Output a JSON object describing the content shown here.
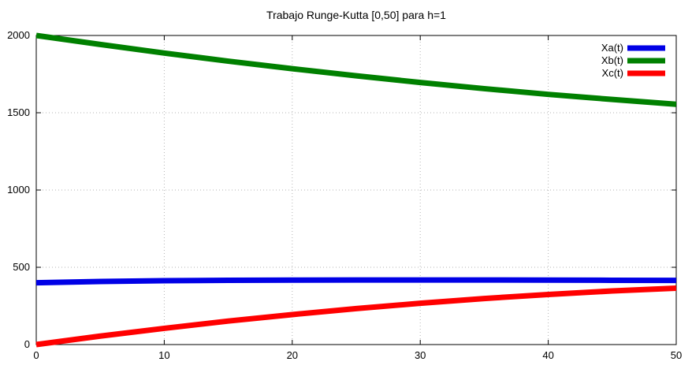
{
  "chart_data": {
    "type": "line",
    "title": "Trabajo Runge-Kutta [0,50] para h=1",
    "xlabel": "",
    "ylabel": "",
    "xlim": [
      0,
      50
    ],
    "ylim": [
      0,
      2000
    ],
    "xticks": [
      0,
      10,
      20,
      30,
      40,
      50
    ],
    "yticks": [
      0,
      500,
      1000,
      1500,
      2000
    ],
    "xtick_labels": [
      "0",
      "10",
      "20",
      "30",
      "40",
      "50"
    ],
    "ytick_labels": [
      "0",
      "500",
      "1000",
      "1500",
      "2000"
    ],
    "grid": true,
    "legend_position": "top-right",
    "x": [
      0,
      5,
      10,
      15,
      20,
      25,
      30,
      35,
      40,
      45,
      50
    ],
    "series": [
      {
        "key": "xa",
        "name": "Xa(t)",
        "color": "#0000e6",
        "values": [
          400,
          408,
          413,
          416,
          417,
          418,
          418,
          418,
          417,
          416,
          415
        ]
      },
      {
        "key": "xb",
        "name": "Xb(t)",
        "color": "#008000",
        "values": [
          2000,
          1942,
          1886,
          1834,
          1785,
          1739,
          1696,
          1656,
          1619,
          1586,
          1555
        ]
      },
      {
        "key": "xc",
        "name": "Xc(t)",
        "color": "#ff0000",
        "values": [
          0,
          55,
          105,
          152,
          194,
          233,
          267,
          298,
          324,
          347,
          365
        ]
      }
    ],
    "style": {
      "line_width": 7,
      "grid_color": "#b3b3b3",
      "border_color": "#000000",
      "background": "#ffffff",
      "text_color": "#000000"
    }
  }
}
